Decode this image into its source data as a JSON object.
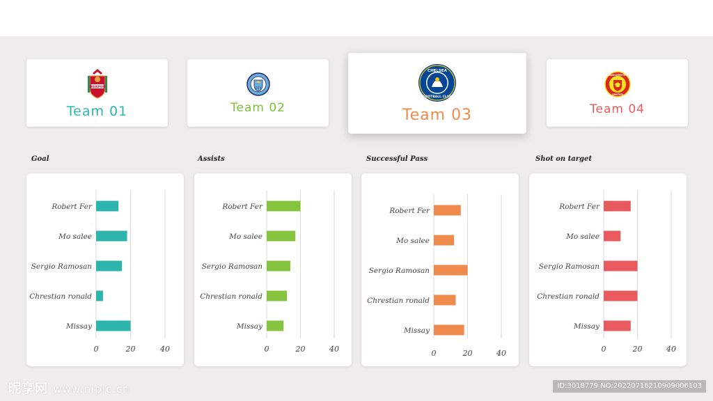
{
  "teams": [
    {
      "name": "Team 01",
      "color": "#2db5ad",
      "logo": "liverpool-crest-icon"
    },
    {
      "name": "Team 02",
      "color": "#7cbf3a",
      "logo": "manchester-city-crest-icon"
    },
    {
      "name": "Team 03",
      "color": "#ee8a4c",
      "logo": "chelsea-crest-icon"
    },
    {
      "name": "Team 04",
      "color": "#e95a5e",
      "logo": "manchester-united-crest-icon"
    }
  ],
  "chart_data": [
    {
      "type": "bar",
      "orientation": "horizontal",
      "title": "Goal",
      "color": "#2db5ad",
      "categories": [
        "Robert Fer",
        "Mo salee",
        "Sergio Ramosan",
        "Chrestian ronald",
        "Missay"
      ],
      "values": [
        13,
        18,
        15,
        4,
        20
      ],
      "xlim": [
        0,
        40
      ],
      "xticks": [
        "0",
        "20",
        "40"
      ],
      "grid": true
    },
    {
      "type": "bar",
      "orientation": "horizontal",
      "title": "Assists",
      "color": "#86c440",
      "categories": [
        "Robert Fer",
        "Mo salee",
        "Sergio Ramosan",
        "Chrestian ronald",
        "Missay"
      ],
      "values": [
        20,
        17,
        14,
        12,
        10
      ],
      "xlim": [
        0,
        40
      ],
      "xticks": [
        "0",
        "20",
        "40"
      ],
      "grid": true
    },
    {
      "type": "bar",
      "orientation": "horizontal",
      "title": "Successful Pass",
      "color": "#ee8a4c",
      "categories": [
        "Robert Fer",
        "Mo salee",
        "Sergio Ramosan",
        "Chrestian ronald",
        "Missay"
      ],
      "values": [
        16,
        12,
        20,
        13,
        18
      ],
      "xlim": [
        0,
        40
      ],
      "xticks": [
        "0",
        "20",
        "40"
      ],
      "grid": true
    },
    {
      "type": "bar",
      "orientation": "horizontal",
      "title": "Shot on target",
      "color": "#e95a5e",
      "categories": [
        "Robert Fer",
        "Mo salee",
        "Sergio Ramosan",
        "Chrestian ronald",
        "Missay"
      ],
      "values": [
        16,
        10,
        20,
        20,
        16
      ],
      "xlim": [
        0,
        40
      ],
      "xticks": [
        "0",
        "20",
        "40"
      ],
      "grid": true
    }
  ],
  "watermark": {
    "left_brand": "昵享网",
    "left_site": "www.nipic.cn",
    "right_id": "ID:3018779 NO:20220716210909006103"
  }
}
